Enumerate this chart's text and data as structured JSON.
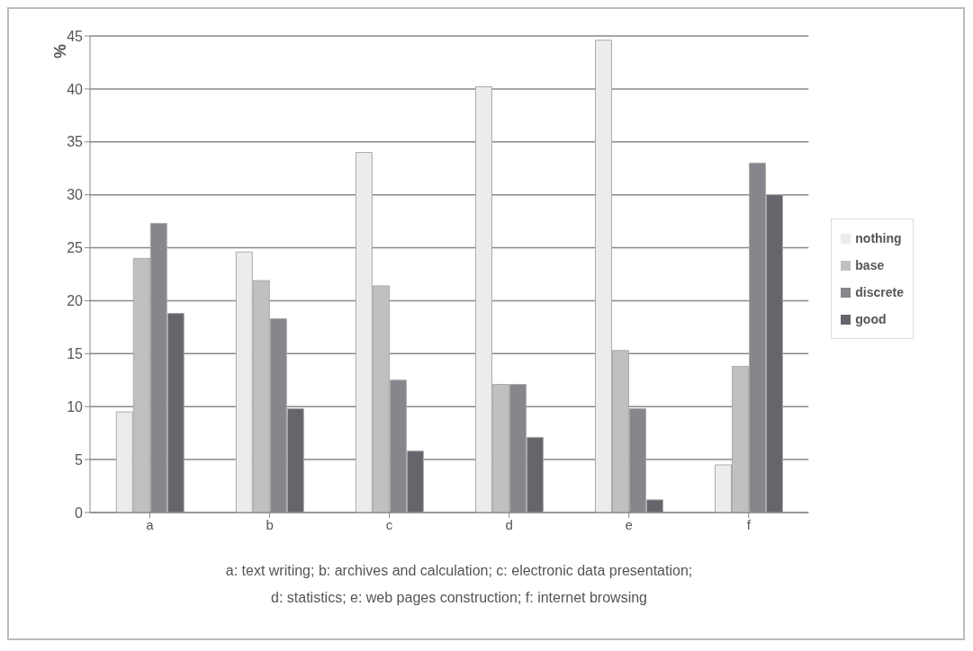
{
  "chart_data": {
    "type": "bar",
    "ylabel": "%",
    "categories": [
      "a",
      "b",
      "c",
      "d",
      "e",
      "f"
    ],
    "series": [
      {
        "name": "nothing",
        "color": "#ececec",
        "values": [
          9.5,
          24.6,
          34,
          40.2,
          44.6,
          4.5
        ]
      },
      {
        "name": "base",
        "color": "#c0c0c0",
        "values": [
          24,
          21.9,
          21.4,
          12.1,
          15.3,
          13.8
        ]
      },
      {
        "name": "discrete",
        "color": "#87868c",
        "values": [
          27.3,
          18.3,
          12.5,
          12.1,
          9.8,
          33
        ]
      },
      {
        "name": "good",
        "color": "#67646b",
        "values": [
          18.8,
          9.8,
          5.8,
          7.1,
          1.2,
          30
        ]
      }
    ],
    "ylim": [
      0,
      45
    ],
    "yticks": [
      0,
      5,
      10,
      15,
      20,
      25,
      30,
      35,
      40,
      45
    ],
    "grid": "y",
    "legend": "right",
    "annotations": [
      "a: text writing; b: archives and calculation; c: electronic data presentation;",
      "d: statistics;  e: web pages construction; f: internet browsing"
    ]
  }
}
